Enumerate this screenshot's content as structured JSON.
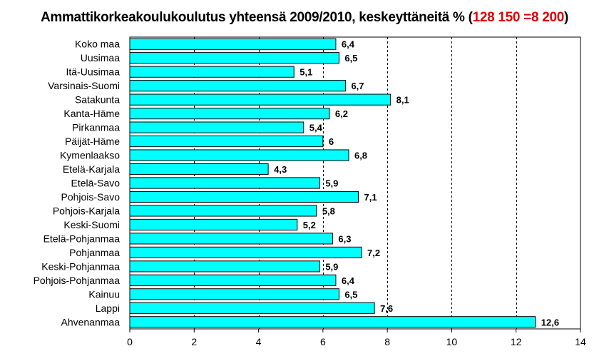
{
  "title": {
    "prefix": "Ammattikorkeakoulukoulutus yhteensä 2009/2010, keskeyttäneitä % (",
    "highlight": "128 150 =8 200",
    "suffix": ")",
    "highlight_color": "#e00000"
  },
  "chart_data": {
    "type": "bar",
    "orientation": "horizontal",
    "title": "Ammattikorkeakoulukoulutus yhteensä 2009/2010, keskeyttäneitä % (128 150 =8 200)",
    "categories": [
      "Koko maa",
      "Uusimaa",
      "Itä-Uusimaa",
      "Varsinais-Suomi",
      "Satakunta",
      "Kanta-Häme",
      "Pirkanmaa",
      "Päijät-Häme",
      "Kymenlaakso",
      "Etelä-Karjala",
      "Etelä-Savo",
      "Pohjois-Savo",
      "Pohjois-Karjala",
      "Keski-Suomi",
      "Etelä-Pohjanmaa",
      "Pohjanmaa",
      "Keski-Pohjanmaa",
      "Pohjois-Pohjanmaa",
      "Kainuu",
      "Lappi",
      "Ahvenanmaa"
    ],
    "values": [
      6.4,
      6.5,
      5.1,
      6.7,
      8.1,
      6.2,
      5.4,
      6.0,
      6.8,
      4.3,
      5.9,
      7.1,
      5.8,
      5.2,
      6.3,
      7.2,
      5.9,
      6.4,
      6.5,
      7.6,
      12.6
    ],
    "value_labels": [
      "6,4",
      "6,5",
      "5,1",
      "6,7",
      "8,1",
      "6,2",
      "5,4",
      "6",
      "6,8",
      "4,3",
      "5,9",
      "7,1",
      "5,8",
      "5,2",
      "6,3",
      "7,2",
      "5,9",
      "6,4",
      "6,5",
      "7,6",
      "12,6"
    ],
    "xlim": [
      0,
      14
    ],
    "xticks": [
      0,
      2,
      4,
      6,
      8,
      10,
      12,
      14
    ],
    "grid": "vertical dashed",
    "bar_color": "#00ffff",
    "bar_edge_color": "#000000"
  }
}
